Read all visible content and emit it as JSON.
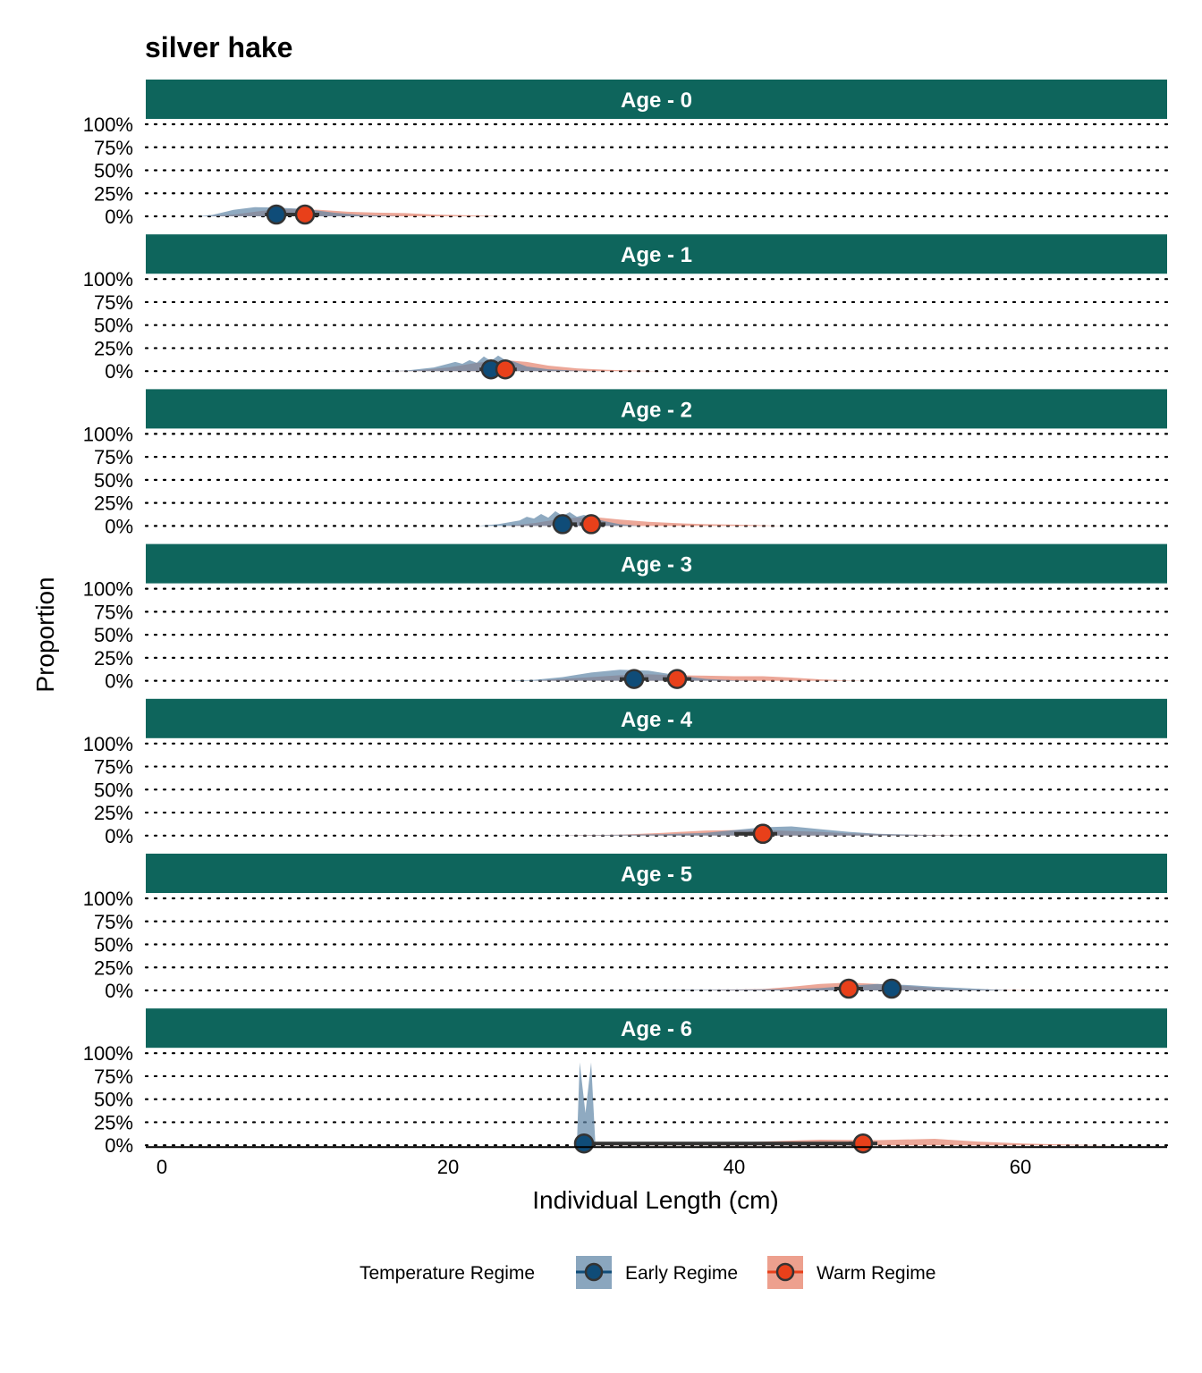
{
  "chart_data": {
    "type": "area",
    "title": "silver hake",
    "xlabel": "Individual Length (cm)",
    "ylabel": "Proportion",
    "xlim": [
      -1.5,
      70
    ],
    "ylim": [
      0,
      1.0
    ],
    "x_ticks": [
      "0",
      "20",
      "40",
      "60"
    ],
    "x_tick_values": [
      0,
      20,
      40,
      60
    ],
    "y_ticks": [
      "0%",
      "25%",
      "50%",
      "75%",
      "100%"
    ],
    "y_tick_values": [
      0,
      0.25,
      0.5,
      0.75,
      1.0
    ],
    "grid": "dotted horizontal",
    "legend": {
      "title": "Temperature Regime",
      "position": "bottom",
      "entries": [
        {
          "name": "Early Regime",
          "fill": "#8aa6be",
          "point": "#0f4c78"
        },
        {
          "name": "Warm Regime",
          "fill": "#eda08e",
          "point": "#e8401a"
        }
      ]
    },
    "colors": {
      "strip": "#0e655c",
      "early_fill": "#5f86a7",
      "warm_fill": "#e58a76",
      "early_point": "#0f4c78",
      "warm_point": "#e8401a",
      "overlap": "#6b5f68"
    },
    "panels": [
      {
        "label": "Age - 0",
        "early": {
          "density": [
            [
              2.5,
              0
            ],
            [
              3.5,
              0.015
            ],
            [
              5,
              0.07
            ],
            [
              6.5,
              0.1
            ],
            [
              8,
              0.095
            ],
            [
              10,
              0.08
            ],
            [
              12,
              0.04
            ],
            [
              14,
              0.015
            ],
            [
              16,
              0.005
            ],
            [
              17,
              0
            ]
          ],
          "median": 8.0,
          "interval": [
            7.2,
            9.0
          ]
        },
        "warm": {
          "density": [
            [
              3,
              0
            ],
            [
              5,
              0.02
            ],
            [
              7,
              0.06
            ],
            [
              9,
              0.08
            ],
            [
              11,
              0.07
            ],
            [
              13,
              0.05
            ],
            [
              15,
              0.04
            ],
            [
              17,
              0.035
            ],
            [
              19,
              0.02
            ],
            [
              22,
              0.008
            ],
            [
              24,
              0
            ]
          ],
          "median": 10.0,
          "interval": [
            9.0,
            11.0
          ]
        }
      },
      {
        "label": "Age - 1",
        "early": {
          "density": [
            [
              15,
              0
            ],
            [
              17,
              0.005
            ],
            [
              19,
              0.04
            ],
            [
              20,
              0.08
            ],
            [
              20.5,
              0.1
            ],
            [
              21,
              0.08
            ],
            [
              21.5,
              0.12
            ],
            [
              22,
              0.09
            ],
            [
              22.5,
              0.16
            ],
            [
              23,
              0.11
            ],
            [
              23.5,
              0.17
            ],
            [
              24,
              0.12
            ],
            [
              24.5,
              0.11
            ],
            [
              25.5,
              0.05
            ],
            [
              27,
              0.02
            ],
            [
              29,
              0.005
            ],
            [
              31,
              0
            ]
          ],
          "median": 23.0,
          "interval": [
            22.2,
            24.0
          ]
        },
        "warm": {
          "density": [
            [
              16,
              0
            ],
            [
              18,
              0.01
            ],
            [
              20,
              0.04
            ],
            [
              22,
              0.09
            ],
            [
              24,
              0.12
            ],
            [
              25.5,
              0.1
            ],
            [
              27,
              0.06
            ],
            [
              29,
              0.03
            ],
            [
              31,
              0.015
            ],
            [
              33,
              0.005
            ],
            [
              35,
              0
            ]
          ],
          "median": 24.0,
          "interval": [
            23.2,
            24.8
          ]
        }
      },
      {
        "label": "Age - 2",
        "early": {
          "density": [
            [
              22,
              0
            ],
            [
              23.5,
              0.02
            ],
            [
              25,
              0.06
            ],
            [
              25.5,
              0.1
            ],
            [
              26,
              0.08
            ],
            [
              26.5,
              0.13
            ],
            [
              27,
              0.09
            ],
            [
              27.5,
              0.16
            ],
            [
              28,
              0.11
            ],
            [
              28.5,
              0.15
            ],
            [
              29,
              0.1
            ],
            [
              29.5,
              0.12
            ],
            [
              30,
              0.09
            ],
            [
              31,
              0.05
            ],
            [
              32,
              0.02
            ],
            [
              33.5,
              0
            ]
          ],
          "median": 28.0,
          "interval": [
            27.3,
            29.0
          ]
        },
        "warm": {
          "density": [
            [
              24,
              0
            ],
            [
              26,
              0.03
            ],
            [
              28,
              0.08
            ],
            [
              30,
              0.1
            ],
            [
              32,
              0.07
            ],
            [
              34,
              0.045
            ],
            [
              36,
              0.03
            ],
            [
              38,
              0.02
            ],
            [
              40,
              0.015
            ],
            [
              42,
              0.008
            ],
            [
              43.5,
              0
            ]
          ],
          "median": 30.0,
          "interval": [
            29.2,
            31.0
          ]
        }
      },
      {
        "label": "Age - 3",
        "early": {
          "density": [
            [
              24,
              0
            ],
            [
              26,
              0.01
            ],
            [
              28,
              0.04
            ],
            [
              30,
              0.09
            ],
            [
              32,
              0.12
            ],
            [
              34,
              0.11
            ],
            [
              36,
              0.06
            ],
            [
              38,
              0.02
            ],
            [
              40,
              0.005
            ],
            [
              42,
              0
            ]
          ],
          "median": 33.0,
          "interval": [
            32.0,
            34.0
          ]
        },
        "warm": {
          "density": [
            [
              26,
              0
            ],
            [
              28,
              0.02
            ],
            [
              30,
              0.04
            ],
            [
              32,
              0.06
            ],
            [
              34,
              0.07
            ],
            [
              36,
              0.06
            ],
            [
              38,
              0.055
            ],
            [
              40,
              0.05
            ],
            [
              42,
              0.05
            ],
            [
              44,
              0.035
            ],
            [
              46,
              0.015
            ],
            [
              48,
              0.003
            ],
            [
              50,
              0
            ]
          ],
          "median": 36.0,
          "interval": [
            35.0,
            37.0
          ]
        }
      },
      {
        "label": "Age - 4",
        "early": {
          "density": [
            [
              25,
              0
            ],
            [
              30,
              0.005
            ],
            [
              35,
              0.015
            ],
            [
              38,
              0.03
            ],
            [
              40,
              0.06
            ],
            [
              42,
              0.09
            ],
            [
              44,
              0.1
            ],
            [
              46,
              0.07
            ],
            [
              48,
              0.04
            ],
            [
              50,
              0.02
            ],
            [
              54,
              0.005
            ],
            [
              58,
              0
            ]
          ],
          "median": 42.0,
          "interval": [
            40.0,
            42.5
          ]
        },
        "warm": {
          "density": [
            [
              27,
              0
            ],
            [
              32,
              0.01
            ],
            [
              35,
              0.03
            ],
            [
              38,
              0.055
            ],
            [
              40,
              0.06
            ],
            [
              42,
              0.06
            ],
            [
              44,
              0.05
            ],
            [
              46,
              0.04
            ],
            [
              48,
              0.025
            ],
            [
              52,
              0.01
            ],
            [
              56,
              0.003
            ],
            [
              60,
              0
            ]
          ],
          "median": 42.0,
          "interval": [
            41.0,
            43.0
          ]
        }
      },
      {
        "label": "Age - 5",
        "early": {
          "density": [
            [
              28,
              0
            ],
            [
              34,
              0.003
            ],
            [
              40,
              0.008
            ],
            [
              44,
              0.015
            ],
            [
              46,
              0.025
            ],
            [
              48,
              0.05
            ],
            [
              50,
              0.07
            ],
            [
              52,
              0.06
            ],
            [
              54,
              0.04
            ],
            [
              56,
              0.025
            ],
            [
              58,
              0.01
            ],
            [
              59,
              0.003
            ],
            [
              59.2,
              0
            ]
          ],
          "median": 51.0,
          "interval": [
            50.5,
            51.5
          ]
        },
        "warm": {
          "density": [
            [
              34,
              0
            ],
            [
              38,
              0.005
            ],
            [
              42,
              0.015
            ],
            [
              44,
              0.04
            ],
            [
              46,
              0.07
            ],
            [
              48,
              0.085
            ],
            [
              50,
              0.07
            ],
            [
              52,
              0.05
            ],
            [
              54,
              0.025
            ],
            [
              56,
              0.01
            ],
            [
              60,
              0.003
            ],
            [
              62,
              0
            ]
          ],
          "median": 48.0,
          "interval": [
            47.0,
            49.0
          ]
        }
      },
      {
        "label": "Age - 6",
        "early": {
          "density": [
            [
              29.0,
              0
            ],
            [
              29.2,
              0.9
            ],
            [
              29.6,
              0.35
            ],
            [
              30.0,
              0.9
            ],
            [
              30.3,
              0
            ]
          ],
          "median": 29.5,
          "interval": [
            29.5,
            49.0
          ]
        },
        "warm": {
          "density": [
            [
              30,
              0
            ],
            [
              36,
              0.01
            ],
            [
              42,
              0.04
            ],
            [
              46,
              0.06
            ],
            [
              50,
              0.055
            ],
            [
              54,
              0.07
            ],
            [
              57,
              0.04
            ],
            [
              60,
              0.02
            ],
            [
              64,
              0.005
            ],
            [
              67,
              0
            ]
          ],
          "median": 49.0,
          "interval": [
            48.0,
            50.0
          ]
        }
      }
    ]
  }
}
